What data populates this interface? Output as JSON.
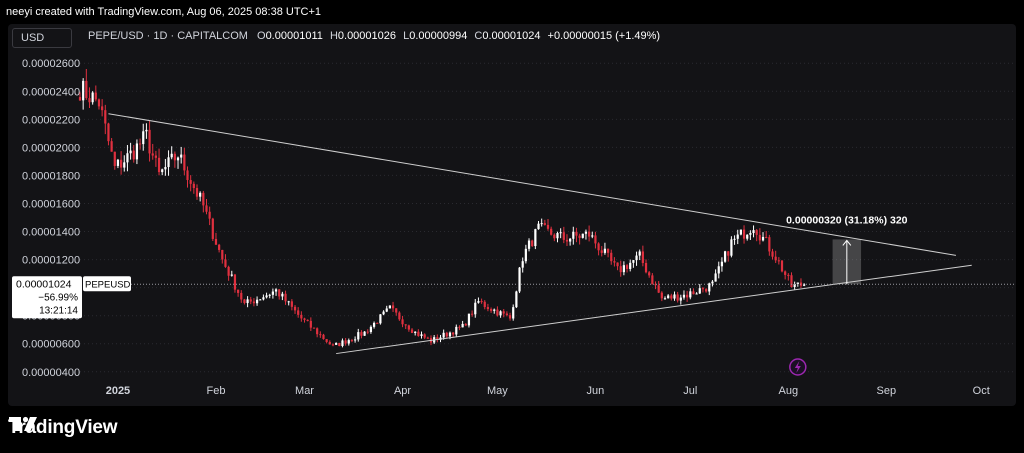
{
  "header": {
    "byline": "neeyi created with TradingView.com, Aug 06, 2025 08:38 UTC+1"
  },
  "toolbar": {
    "unit_label": "USD"
  },
  "legend": {
    "symbol": "PEPE/USD · 1D · CAPITALCOM",
    "open_label": "O",
    "open": "0.00001011",
    "high_label": "H",
    "high": "0.00001026",
    "low_label": "L",
    "low": "0.00000994",
    "close_label": "C",
    "close": "0.00001024",
    "change": "+0.00000015 (+1.49%)"
  },
  "price_tag": {
    "price": "0.00001024",
    "symbol": "PEPEUSD",
    "change_pct": "−56.99%",
    "countdown": "13:21:14"
  },
  "measure_label": "0.00000320 (31.18%) 320",
  "brand": {
    "name": "TradingView"
  },
  "colors": {
    "up": "#ffffff",
    "down": "#e0303f",
    "background": "#131316",
    "trendline": "#cfcfcf",
    "accent": "#9c27b0"
  },
  "chart_data": {
    "type": "candlestick",
    "symbol": "PEPE/USD",
    "timeframe": "1D",
    "y_tick_labels": [
      "0.00002600",
      "0.00002400",
      "0.00002200",
      "0.00002000",
      "0.00001800",
      "0.00001600",
      "0.00001400",
      "0.00001200",
      "0.00001000",
      "0.00000800",
      "0.00000600",
      "0.00000400"
    ],
    "y_ticks": [
      2.6e-05,
      2.4e-05,
      2.2e-05,
      2e-05,
      1.8e-05,
      1.6e-05,
      1.4e-05,
      1.2e-05,
      1e-05,
      8e-06,
      6e-06,
      4e-06
    ],
    "ylim": [
      3.7e-06,
      2.68e-05
    ],
    "x_tick_labels": [
      "2025",
      "Feb",
      "Mar",
      "Apr",
      "May",
      "Jun",
      "Jul",
      "Aug",
      "Sep",
      "Oct"
    ],
    "x_ticks": [
      "2025-01-01",
      "2025-02-01",
      "2025-03-01",
      "2025-04-01",
      "2025-05-01",
      "2025-06-01",
      "2025-07-01",
      "2025-08-01",
      "2025-09-01",
      "2025-10-01"
    ],
    "xlim": [
      "2024-12-20",
      "2025-10-12"
    ],
    "last_close": 1.024e-05,
    "anchors": [
      [
        "2024-12-20",
        2.42e-05
      ],
      [
        "2024-12-26",
        2.32e-05
      ],
      [
        "2024-12-31",
        1.85e-05
      ],
      [
        "2025-01-05",
        1.95e-05
      ],
      [
        "2025-01-10",
        2.08e-05
      ],
      [
        "2025-01-14",
        1.8e-05
      ],
      [
        "2025-01-20",
        1.95e-05
      ],
      [
        "2025-01-28",
        1.58e-05
      ],
      [
        "2025-02-03",
        1.2e-05
      ],
      [
        "2025-02-10",
        8.8e-06
      ],
      [
        "2025-02-20",
        9.8e-06
      ],
      [
        "2025-02-28",
        7.8e-06
      ],
      [
        "2025-03-10",
        5.8e-06
      ],
      [
        "2025-03-20",
        6.8e-06
      ],
      [
        "2025-03-28",
        8.5e-06
      ],
      [
        "2025-04-05",
        6.8e-06
      ],
      [
        "2025-04-10",
        6.2e-06
      ],
      [
        "2025-04-20",
        7.2e-06
      ],
      [
        "2025-04-25",
        9e-06
      ],
      [
        "2025-05-05",
        7.8e-06
      ],
      [
        "2025-05-09",
        1.22e-05
      ],
      [
        "2025-05-14",
        1.42e-05
      ],
      [
        "2025-05-22",
        1.35e-05
      ],
      [
        "2025-05-30",
        1.38e-05
      ],
      [
        "2025-06-08",
        1.12e-05
      ],
      [
        "2025-06-15",
        1.22e-05
      ],
      [
        "2025-06-22",
        9.2e-06
      ],
      [
        "2025-06-30",
        9.5e-06
      ],
      [
        "2025-07-08",
        1.02e-05
      ],
      [
        "2025-07-14",
        1.32e-05
      ],
      [
        "2025-07-21",
        1.45e-05
      ],
      [
        "2025-07-28",
        1.22e-05
      ],
      [
        "2025-08-02",
        1.01e-05
      ],
      [
        "2025-08-06",
        1.024e-05
      ]
    ],
    "trendline_upper": [
      [
        "2024-12-29",
        2.24e-05
      ],
      [
        "2025-09-23",
        1.23e-05
      ]
    ],
    "trendline_lower": [
      [
        "2025-03-11",
        5.3e-06
      ],
      [
        "2025-09-28",
        1.16e-05
      ]
    ],
    "current_price_line": 1.024e-05,
    "measure": {
      "from": 1.024e-05,
      "to": 1.344e-05,
      "start": "2025-08-15",
      "end": "2025-08-24"
    }
  }
}
